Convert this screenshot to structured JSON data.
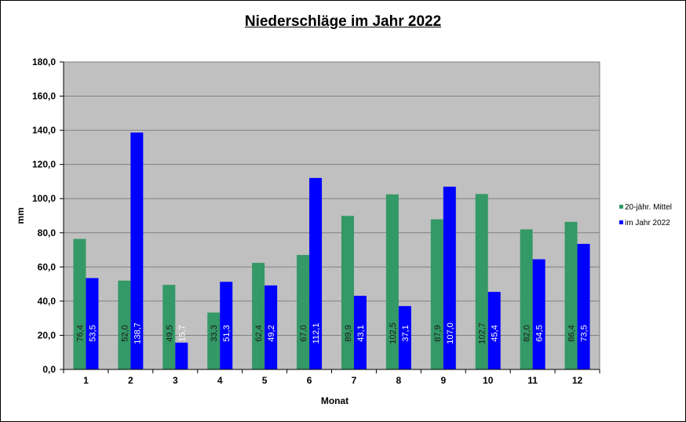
{
  "chart_data": {
    "type": "bar",
    "title": "Niederschläge im Jahr  2022",
    "xlabel": "Monat",
    "ylabel": "mm",
    "categories": [
      "1",
      "2",
      "3",
      "4",
      "5",
      "6",
      "7",
      "8",
      "9",
      "10",
      "11",
      "12"
    ],
    "series": [
      {
        "name": "20-jähr. Mittel",
        "color": "#339966",
        "values": [
          76.4,
          52.0,
          49.5,
          33.3,
          62.4,
          67.0,
          89.9,
          102.5,
          87.9,
          102.7,
          82.0,
          86.4
        ],
        "labels": [
          "76,4",
          "52,0",
          "49,5",
          "33,3",
          "62,4",
          "67,0",
          "89,9",
          "102,5",
          "87,9",
          "102,7",
          "82,0",
          "86,4"
        ]
      },
      {
        "name": "im Jahr 2022",
        "color": "#0000ff",
        "values": [
          53.5,
          138.7,
          15.7,
          51.3,
          49.2,
          112.1,
          43.1,
          37.1,
          107.0,
          45.4,
          64.5,
          73.5
        ],
        "labels": [
          "53,5",
          "138,7",
          "15,7",
          "51,3",
          "49,2",
          "112,1",
          "43,1",
          "37,1",
          "107,0",
          "45,4",
          "64,5",
          "73,5"
        ]
      }
    ],
    "ylim": [
      0,
      180
    ],
    "yticks": [
      "0,0",
      "20,0",
      "40,0",
      "60,0",
      "80,0",
      "100,0",
      "120,0",
      "140,0",
      "160,0",
      "180,0"
    ],
    "plot_background": "#c0c0c0",
    "grid": true,
    "legend": "right"
  }
}
